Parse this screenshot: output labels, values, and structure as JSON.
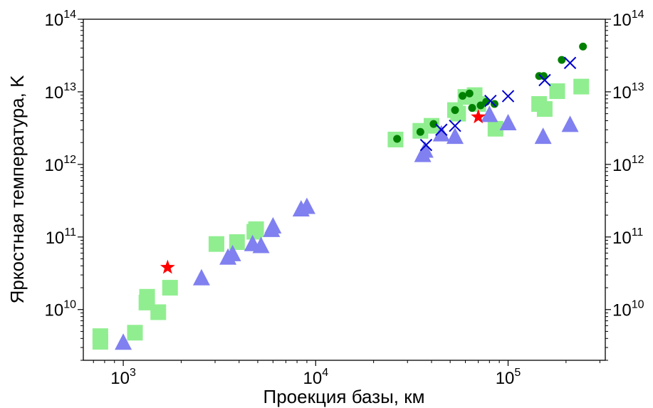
{
  "chart_data": {
    "type": "scatter",
    "title": "",
    "xlabel": "Проекция базы, км",
    "ylabel": "Яркостная температура, K",
    "xscale": "log",
    "yscale": "log",
    "xlim": [
      620,
      320000
    ],
    "ylim": [
      2000000000,
      100000000000000
    ],
    "x_ticks": [
      {
        "base": "10",
        "exp": "3",
        "value": 1000
      },
      {
        "base": "10",
        "exp": "4",
        "value": 10000
      },
      {
        "base": "10",
        "exp": "5",
        "value": 100000
      }
    ],
    "y_ticks": [
      {
        "base": "10",
        "exp": "10",
        "value": 10000000000
      },
      {
        "base": "10",
        "exp": "11",
        "value": 100000000000
      },
      {
        "base": "10",
        "exp": "12",
        "value": 1000000000000
      },
      {
        "base": "10",
        "exp": "13",
        "value": 10000000000000
      },
      {
        "base": "10",
        "exp": "14",
        "value": 100000000000000
      }
    ],
    "grid": false,
    "legend": "none",
    "series": [
      {
        "marker": "square",
        "color": "#90EE90",
        "points": [
          [
            760,
            3600000000.0
          ],
          [
            760,
            4300000000.0
          ],
          [
            1150,
            4800000000.0
          ],
          [
            1320,
            12500000000.0
          ],
          [
            1330,
            15000000000.0
          ],
          [
            1520,
            9200000000.0
          ],
          [
            1750,
            20000000000.0
          ],
          [
            3050,
            80000000000.0
          ],
          [
            3900,
            85000000000.0
          ],
          [
            4800,
            118000000000.0
          ],
          [
            4900,
            128000000000.0
          ],
          [
            26000,
            2200000000000.0
          ],
          [
            35000,
            2900000000000.0
          ],
          [
            40000,
            3400000000000.0
          ],
          [
            53000,
            5600000000000.0
          ],
          [
            55000,
            5000000000000.0
          ],
          [
            60000,
            8500000000000.0
          ],
          [
            67000,
            9000000000000.0
          ],
          [
            70000,
            6800000000000.0
          ],
          [
            86000,
            3100000000000.0
          ],
          [
            145000,
            6800000000000.0
          ],
          [
            155000,
            5800000000000.0
          ],
          [
            180000,
            10200000000000.0
          ],
          [
            240000,
            11800000000000.0
          ]
        ]
      },
      {
        "marker": "triangle",
        "color": "#8080F0",
        "points": [
          [
            1000,
            3500000000.0
          ],
          [
            2550,
            27000000000.0
          ],
          [
            3500,
            52000000000.0
          ],
          [
            3700,
            58000000000.0
          ],
          [
            4700,
            80000000000.0
          ],
          [
            5200,
            75000000000.0
          ],
          [
            5900,
            125000000000.0
          ],
          [
            6000,
            140000000000.0
          ],
          [
            8400,
            240000000000.0
          ],
          [
            9000,
            260000000000.0
          ],
          [
            36000,
            1350000000000.0
          ],
          [
            37000,
            1550000000000.0
          ],
          [
            45000,
            2600000000000.0
          ],
          [
            53000,
            2400000000000.0
          ],
          [
            80000,
            4800000000000.0
          ],
          [
            100000,
            3700000000000.0
          ],
          [
            152000,
            2400000000000.0
          ],
          [
            210000,
            3500000000000.0
          ]
        ]
      },
      {
        "marker": "circle",
        "color": "#008000",
        "points": [
          [
            26500,
            2250000000000.0
          ],
          [
            35000,
            2800000000000.0
          ],
          [
            41000,
            3600000000000.0
          ],
          [
            53000,
            5600000000000.0
          ],
          [
            58000,
            8800000000000.0
          ],
          [
            63000,
            9500000000000.0
          ],
          [
            65000,
            6000000000000.0
          ],
          [
            72000,
            6500000000000.0
          ],
          [
            77000,
            7300000000000.0
          ],
          [
            85000,
            6800000000000.0
          ],
          [
            145000,
            16500000000000.0
          ],
          [
            153000,
            16500000000000.0
          ],
          [
            190000,
            27500000000000.0
          ],
          [
            245000,
            42000000000000.0
          ]
        ]
      },
      {
        "marker": "x",
        "color": "#0000CC",
        "points": [
          [
            37500,
            1850000000000.0
          ],
          [
            45000,
            3000000000000.0
          ],
          [
            53000,
            3400000000000.0
          ],
          [
            81000,
            7500000000000.0
          ],
          [
            100000,
            8700000000000.0
          ],
          [
            155000,
            14500000000000.0
          ],
          [
            210000,
            25000000000000.0
          ]
        ]
      },
      {
        "marker": "star",
        "color": "#FF0000",
        "points": [
          [
            1700,
            38000000000.0
          ],
          [
            70000,
            4500000000000.0
          ]
        ]
      }
    ]
  }
}
